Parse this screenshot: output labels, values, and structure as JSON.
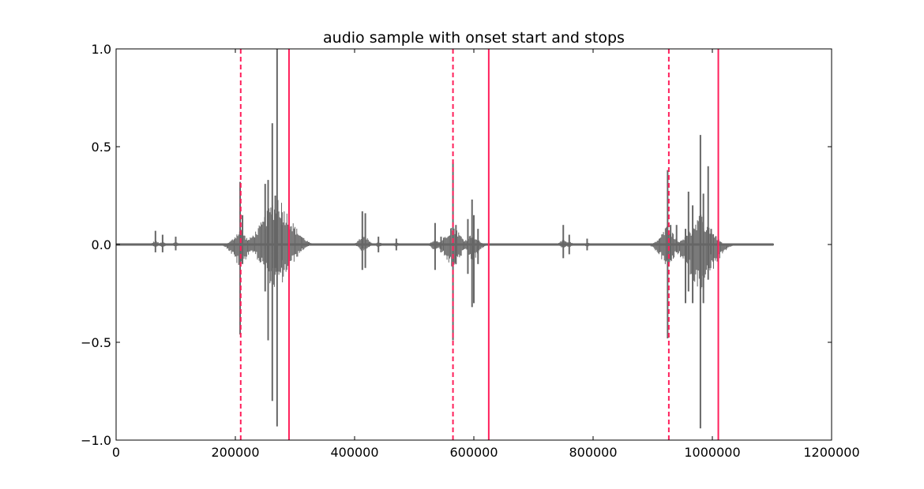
{
  "chart_data": {
    "type": "line",
    "title": "audio sample with onset start and stops",
    "xlabel": "",
    "ylabel": "",
    "xlim": [
      0,
      1200000
    ],
    "ylim": [
      -1.0,
      1.0
    ],
    "x_ticks": [
      0,
      200000,
      400000,
      600000,
      800000,
      1000000,
      1200000
    ],
    "x_tick_labels": [
      "0",
      "200000",
      "400000",
      "600000",
      "800000",
      "1000000",
      "1200000"
    ],
    "y_ticks": [
      1.0,
      0.5,
      0.0,
      -0.5,
      -1.0
    ],
    "y_tick_labels": [
      "1.0",
      "0.5",
      "0.0",
      "−0.5",
      "−1.0"
    ],
    "grid": false,
    "signal_color": "#666666",
    "signal_extent": [
      0,
      1102500
    ],
    "signal_baseline": 0.0,
    "signal_bursts": [
      {
        "x": 66000,
        "max": 0.07,
        "min": -0.04
      },
      {
        "x": 78000,
        "max": 0.05,
        "min": -0.04
      },
      {
        "x": 100000,
        "max": 0.04,
        "min": -0.03
      },
      {
        "x": 208000,
        "max": 0.32,
        "min": -0.46
      },
      {
        "x": 212000,
        "max": 0.15,
        "min": -0.1
      },
      {
        "x": 250000,
        "max": 0.31,
        "min": -0.24
      },
      {
        "x": 255000,
        "max": 0.33,
        "min": -0.49
      },
      {
        "x": 262000,
        "max": 0.62,
        "min": -0.8
      },
      {
        "x": 267000,
        "max": 0.25,
        "min": -0.12
      },
      {
        "x": 270000,
        "max": 1.0,
        "min": -0.93
      },
      {
        "x": 278000,
        "max": 0.1,
        "min": -0.08
      },
      {
        "x": 413000,
        "max": 0.17,
        "min": -0.13
      },
      {
        "x": 418000,
        "max": 0.16,
        "min": -0.12
      },
      {
        "x": 440000,
        "max": 0.04,
        "min": -0.04
      },
      {
        "x": 470000,
        "max": 0.03,
        "min": -0.03
      },
      {
        "x": 535000,
        "max": 0.11,
        "min": -0.13
      },
      {
        "x": 545000,
        "max": 0.04,
        "min": -0.04
      },
      {
        "x": 565000,
        "max": 0.42,
        "min": -0.49
      },
      {
        "x": 570000,
        "max": 0.1,
        "min": -0.1
      },
      {
        "x": 590000,
        "max": 0.13,
        "min": -0.15
      },
      {
        "x": 597000,
        "max": 0.23,
        "min": -0.32
      },
      {
        "x": 600000,
        "max": 0.15,
        "min": -0.3
      },
      {
        "x": 607000,
        "max": 0.08,
        "min": -0.1
      },
      {
        "x": 750000,
        "max": 0.1,
        "min": -0.07
      },
      {
        "x": 760000,
        "max": 0.05,
        "min": -0.05
      },
      {
        "x": 790000,
        "max": 0.03,
        "min": -0.03
      },
      {
        "x": 925000,
        "max": 0.38,
        "min": -0.48
      },
      {
        "x": 930000,
        "max": 0.1,
        "min": -0.08
      },
      {
        "x": 940000,
        "max": 0.1,
        "min": -0.04
      },
      {
        "x": 955000,
        "max": 0.08,
        "min": -0.3
      },
      {
        "x": 960000,
        "max": 0.27,
        "min": -0.24
      },
      {
        "x": 967000,
        "max": 0.2,
        "min": -0.3
      },
      {
        "x": 980000,
        "max": 0.56,
        "min": -0.94
      },
      {
        "x": 985000,
        "max": 0.26,
        "min": -0.3
      },
      {
        "x": 993000,
        "max": 0.4,
        "min": -0.18
      },
      {
        "x": 998000,
        "max": 0.08,
        "min": -0.05
      }
    ],
    "onset_color": "#ff1f5b",
    "onset_starts": [
      209000,
      565000,
      927000
    ],
    "onset_stops": [
      290000,
      625000,
      1010000
    ]
  }
}
